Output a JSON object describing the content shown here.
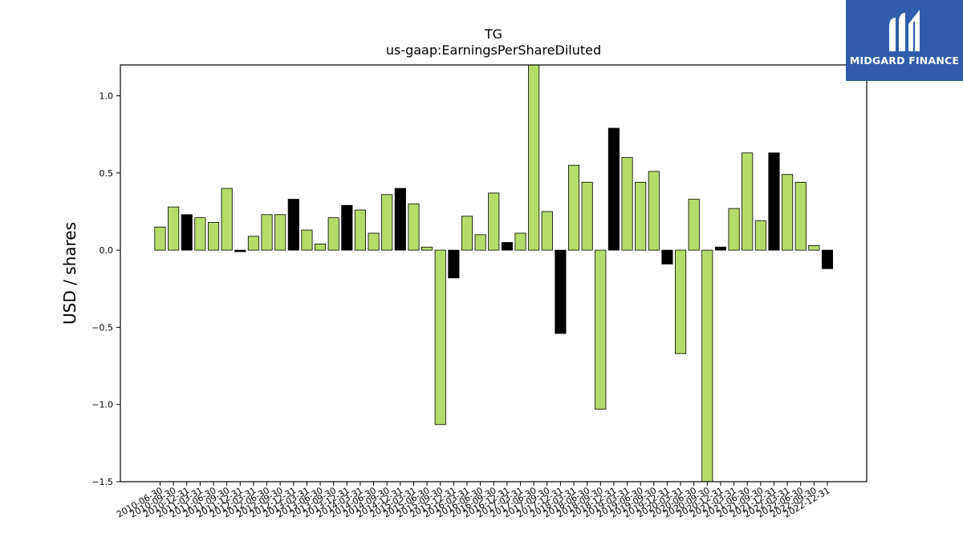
{
  "chart_data": {
    "type": "bar",
    "title": "TG",
    "subtitle": "us-gaap:EarningsPerShareDiluted",
    "xlabel": "",
    "ylabel": "USD / shares",
    "ylim": [
      -1.5,
      1.2
    ],
    "yticks": [
      -1.5,
      -1.0,
      -0.5,
      0.0,
      0.5,
      1.0
    ],
    "ytick_labels": [
      "−1.5",
      "−1.0",
      "−0.5",
      "0.0",
      "0.5",
      "1.0"
    ],
    "grid": false,
    "legend": "none",
    "colors": {
      "regular": "#b5dc6a",
      "annual": "#000000"
    },
    "categories": [
      "2010-06-30",
      "2010-09-30",
      "2010-12-31",
      "2011-03-31",
      "2011-06-30",
      "2011-09-30",
      "2011-12-31",
      "2012-03-31",
      "2012-06-30",
      "2012-09-30",
      "2012-12-31",
      "2013-03-31",
      "2013-06-30",
      "2013-09-30",
      "2013-12-31",
      "2014-03-31",
      "2014-06-30",
      "2014-09-30",
      "2014-12-31",
      "2015-03-31",
      "2015-06-30",
      "2015-09-30",
      "2015-12-31",
      "2016-03-31",
      "2016-06-30",
      "2016-09-30",
      "2016-12-31",
      "2017-03-31",
      "2017-06-30",
      "2017-09-30",
      "2017-12-31",
      "2018-03-31",
      "2018-06-30",
      "2018-09-30",
      "2018-12-31",
      "2019-03-31",
      "2019-06-30",
      "2019-09-30",
      "2019-12-31",
      "2020-03-31",
      "2020-06-30",
      "2020-09-30",
      "2020-12-31",
      "2021-03-31",
      "2021-06-30",
      "2021-09-30",
      "2021-12-31",
      "2022-03-31",
      "2022-06-30",
      "2022-09-30",
      "2022-12-31"
    ],
    "values": [
      0.15,
      0.28,
      0.23,
      0.21,
      0.18,
      0.4,
      -0.01,
      0.09,
      0.23,
      0.23,
      0.33,
      0.13,
      0.04,
      0.21,
      0.29,
      0.26,
      0.11,
      0.36,
      0.4,
      0.3,
      0.02,
      -1.13,
      -0.18,
      0.22,
      0.1,
      0.37,
      0.05,
      0.11,
      1.27,
      0.25,
      -0.54,
      0.55,
      0.44,
      -1.03,
      0.79,
      0.6,
      0.44,
      0.51,
      -0.09,
      -0.67,
      0.33,
      -1.65,
      0.02,
      0.27,
      0.63,
      0.19,
      0.63,
      0.49,
      0.44,
      0.03,
      -0.12
    ],
    "annual": [
      false,
      false,
      true,
      false,
      false,
      false,
      true,
      false,
      false,
      false,
      true,
      false,
      false,
      false,
      true,
      false,
      false,
      false,
      true,
      false,
      false,
      false,
      true,
      false,
      false,
      false,
      true,
      false,
      false,
      false,
      true,
      false,
      false,
      false,
      true,
      false,
      false,
      false,
      true,
      false,
      false,
      false,
      true,
      false,
      false,
      false,
      true,
      false,
      false,
      false,
      true
    ]
  },
  "logo": {
    "text": "MIDGARD FINANCE",
    "background": "#2f5dab",
    "icon": "midgard-logo-icon"
  }
}
